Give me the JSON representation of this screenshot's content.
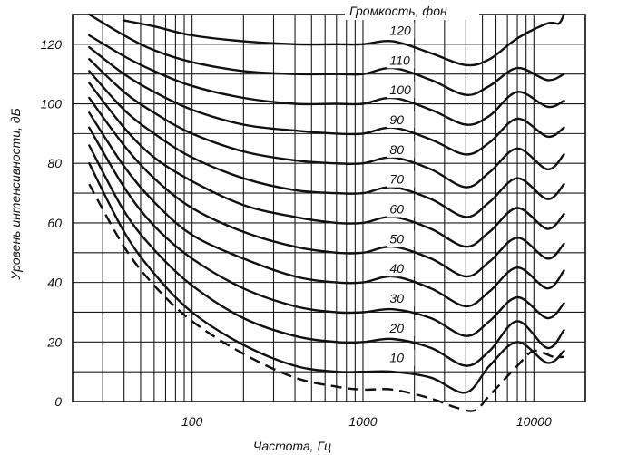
{
  "chart_data": {
    "type": "line",
    "title": "Громкость, фон",
    "xlabel": "Частота, Гц",
    "ylabel": "Уровень интенсивности, дБ",
    "x_scale": "log",
    "xlim": [
      20,
      20000
    ],
    "ylim": [
      0,
      130
    ],
    "x_tick_labels": [
      {
        "value": 100,
        "label": "100"
      },
      {
        "value": 1000,
        "label": "1000"
      },
      {
        "value": 10000,
        "label": "10000"
      }
    ],
    "y_tick_labels": [
      {
        "value": 0,
        "label": "0"
      },
      {
        "value": 20,
        "label": "20"
      },
      {
        "value": 40,
        "label": "40"
      },
      {
        "value": 60,
        "label": "60"
      },
      {
        "value": 80,
        "label": "80"
      },
      {
        "value": 100,
        "label": "100"
      },
      {
        "value": 120,
        "label": "120"
      }
    ],
    "grid": true,
    "series": [
      {
        "name": "10",
        "x": [
          25,
          40,
          60,
          100,
          200,
          400,
          700,
          1000,
          1500,
          2500,
          4000,
          5500,
          8000,
          12000,
          15000
        ],
        "y": [
          80,
          57,
          43,
          30,
          19,
          12,
          10,
          10,
          10,
          8,
          3,
          12,
          20,
          13,
          17
        ]
      },
      {
        "name": "20",
        "x": [
          25,
          40,
          60,
          100,
          200,
          400,
          700,
          1000,
          1500,
          2500,
          4000,
          5500,
          8000,
          12000,
          15000
        ],
        "y": [
          86,
          64,
          51,
          39,
          28,
          22,
          20,
          20,
          21,
          18,
          12,
          17,
          27,
          18,
          24
        ]
      },
      {
        "name": "30",
        "x": [
          25,
          40,
          60,
          100,
          200,
          400,
          700,
          1000,
          1500,
          2500,
          4000,
          5500,
          8000,
          12000,
          15000
        ],
        "y": [
          92,
          72,
          59,
          48,
          38,
          32,
          30,
          30,
          31,
          28,
          22,
          27,
          35,
          28,
          33
        ]
      },
      {
        "name": "40",
        "x": [
          25,
          40,
          60,
          100,
          200,
          400,
          700,
          1000,
          1500,
          2500,
          4000,
          5500,
          8000,
          12000,
          15000
        ],
        "y": [
          97,
          79,
          67,
          56,
          48,
          42,
          40,
          40,
          42,
          38,
          32,
          37,
          45,
          38,
          44
        ]
      },
      {
        "name": "50",
        "x": [
          25,
          40,
          60,
          100,
          200,
          400,
          700,
          1000,
          1500,
          2500,
          4000,
          5500,
          8000,
          12000,
          15000
        ],
        "y": [
          102,
          86,
          75,
          65,
          57,
          52,
          50,
          50,
          52,
          48,
          42,
          47,
          55,
          48,
          53
        ]
      },
      {
        "name": "60",
        "x": [
          25,
          40,
          60,
          100,
          200,
          400,
          700,
          1000,
          1500,
          2500,
          4000,
          5500,
          8000,
          12000,
          15000
        ],
        "y": [
          107,
          92,
          82,
          74,
          66,
          62,
          60,
          60,
          62,
          58,
          52,
          57,
          65,
          58,
          63
        ]
      },
      {
        "name": "70",
        "x": [
          25,
          40,
          60,
          100,
          200,
          400,
          700,
          1000,
          1500,
          2500,
          4000,
          5500,
          8000,
          12000,
          15000
        ],
        "y": [
          111,
          98,
          90,
          82,
          75,
          71,
          70,
          70,
          72,
          68,
          62,
          67,
          75,
          68,
          73
        ]
      },
      {
        "name": "80",
        "x": [
          25,
          40,
          60,
          100,
          200,
          400,
          700,
          1000,
          1500,
          2500,
          4000,
          5500,
          8000,
          12000,
          15000
        ],
        "y": [
          115,
          104,
          97,
          90,
          84,
          81,
          80,
          80,
          82,
          78,
          72,
          77,
          85,
          78,
          83
        ]
      },
      {
        "name": "90",
        "x": [
          25,
          40,
          60,
          100,
          200,
          400,
          700,
          1000,
          1500,
          2500,
          4000,
          5500,
          8000,
          12000,
          15000
        ],
        "y": [
          119,
          110,
          104,
          98,
          93,
          91,
          90,
          90,
          92,
          88,
          83,
          87,
          95,
          89,
          92
        ]
      },
      {
        "name": "100",
        "x": [
          25,
          40,
          60,
          100,
          200,
          400,
          700,
          1000,
          1500,
          2500,
          4000,
          5500,
          8000,
          12000,
          15000
        ],
        "y": [
          123,
          116,
          111,
          106,
          102,
          100,
          100,
          100,
          102,
          98,
          93,
          96,
          104,
          99,
          101
        ]
      },
      {
        "name": "110",
        "x": [
          25,
          40,
          60,
          100,
          200,
          400,
          700,
          1000,
          1500,
          2500,
          4000,
          5500,
          8000,
          12000,
          15000
        ],
        "y": [
          130,
          123,
          118,
          114,
          111,
          110,
          110,
          110,
          112,
          108,
          103,
          106,
          112,
          108,
          110
        ]
      },
      {
        "name": "120",
        "x": [
          40,
          60,
          100,
          200,
          400,
          700,
          1000,
          1500,
          2500,
          4000,
          5500,
          8000,
          12000,
          14000,
          15000
        ],
        "y": [
          128,
          126,
          123,
          121,
          120,
          120,
          120,
          121,
          117,
          113,
          115,
          122,
          127,
          127,
          130
        ]
      },
      {
        "name": "",
        "style": "dashed",
        "x": [
          25,
          40,
          60,
          100,
          200,
          400,
          700,
          1000,
          1500,
          2500,
          3500,
          4500,
          5500,
          8000,
          10000,
          13000,
          15000
        ],
        "y": [
          73,
          52,
          39,
          27,
          16,
          8,
          5,
          4,
          4,
          1,
          -2,
          -3,
          2,
          12,
          17,
          15,
          15
        ]
      }
    ]
  }
}
